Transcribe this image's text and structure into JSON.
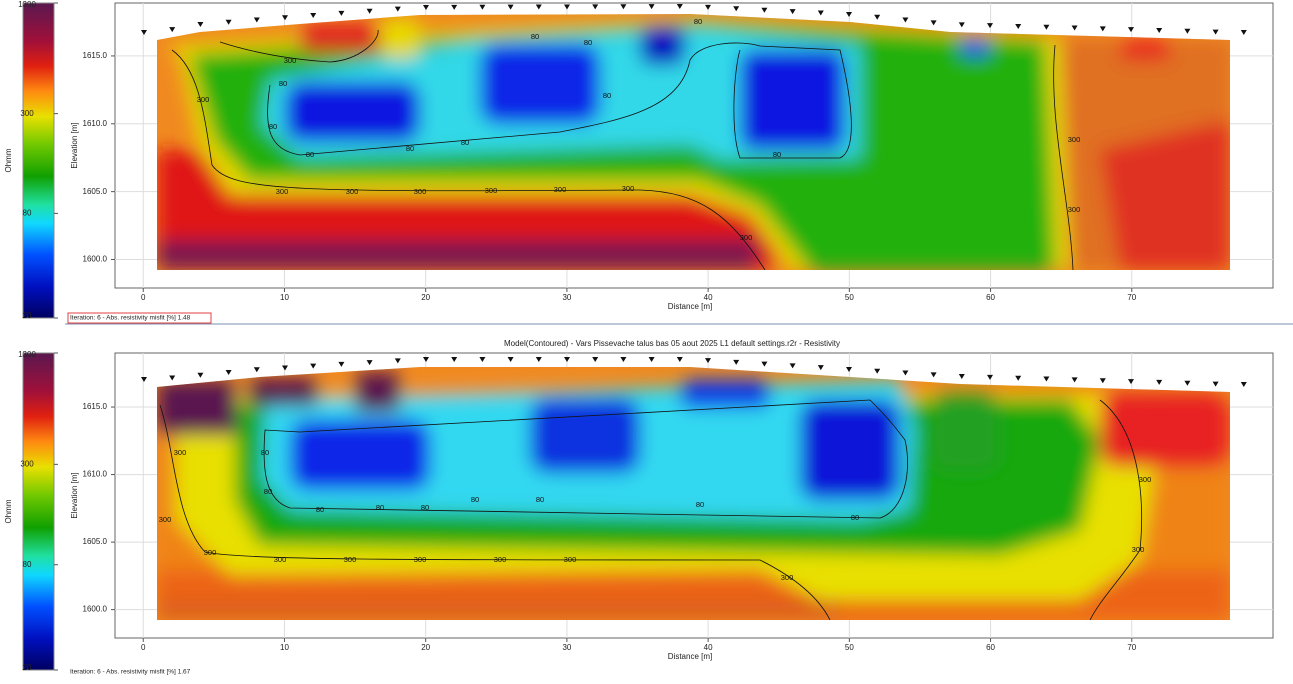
{
  "panels": [
    {
      "colorbar_label": "Ohmm",
      "colorbar_lim": [
        20,
        1300
      ],
      "colorbar_log": true,
      "colorbar_ticks": [
        20,
        80,
        300,
        1300
      ],
      "y_label": "Elevation [m]",
      "x_label": "Distance [m]",
      "xlim": [
        -2,
        80
      ],
      "xticks": [
        0,
        10,
        20,
        30,
        40,
        50,
        60,
        70
      ],
      "ylim": [
        1597.9,
        1618.9
      ],
      "yticks": [
        {
          "value": 1600,
          "label": "1600.0"
        },
        {
          "value": 1605,
          "label": "1605.0"
        },
        {
          "value": 1610,
          "label": "1610.0"
        },
        {
          "value": 1615,
          "label": "1615.0"
        }
      ],
      "contour_labels": [
        "300",
        "300",
        "300",
        "300",
        "300",
        "300",
        "300",
        "300",
        "300",
        "300",
        "300",
        "80",
        "80",
        "80",
        "80",
        "80",
        "80",
        "80",
        "80",
        "80",
        "80"
      ],
      "status": "Iteration: 6 - Abs. resistivity misfit [%] 1.48"
    },
    {
      "title": "Model(Contoured) - Vars Pissevache talus bas 05 aout 2025 L1 default settings.r2r - Resistivity",
      "colorbar_label": "Ohmm",
      "colorbar_lim": [
        20,
        1300
      ],
      "colorbar_log": true,
      "colorbar_ticks": [
        20,
        80,
        300,
        1300
      ],
      "y_label": "Elevation [m]",
      "x_label": "Distance [m]",
      "xlim": [
        -2,
        80
      ],
      "xticks": [
        0,
        10,
        20,
        30,
        40,
        50,
        60,
        70
      ],
      "ylim": [
        1597.9,
        1619
      ],
      "yticks": [
        {
          "value": 1600,
          "label": "1600.0"
        },
        {
          "value": 1605,
          "label": "1605.0"
        },
        {
          "value": 1610,
          "label": "1610.0"
        },
        {
          "value": 1615,
          "label": "1615.0"
        }
      ],
      "contour_labels": [
        "300",
        "300",
        "300",
        "300",
        "300",
        "300",
        "300",
        "300",
        "300",
        "300",
        "300",
        "80",
        "80",
        "80",
        "80",
        "80",
        "80",
        "80",
        "80",
        "80"
      ],
      "status": "Iteration: 6 - Abs. resistivity misfit [%] 1.67"
    }
  ]
}
